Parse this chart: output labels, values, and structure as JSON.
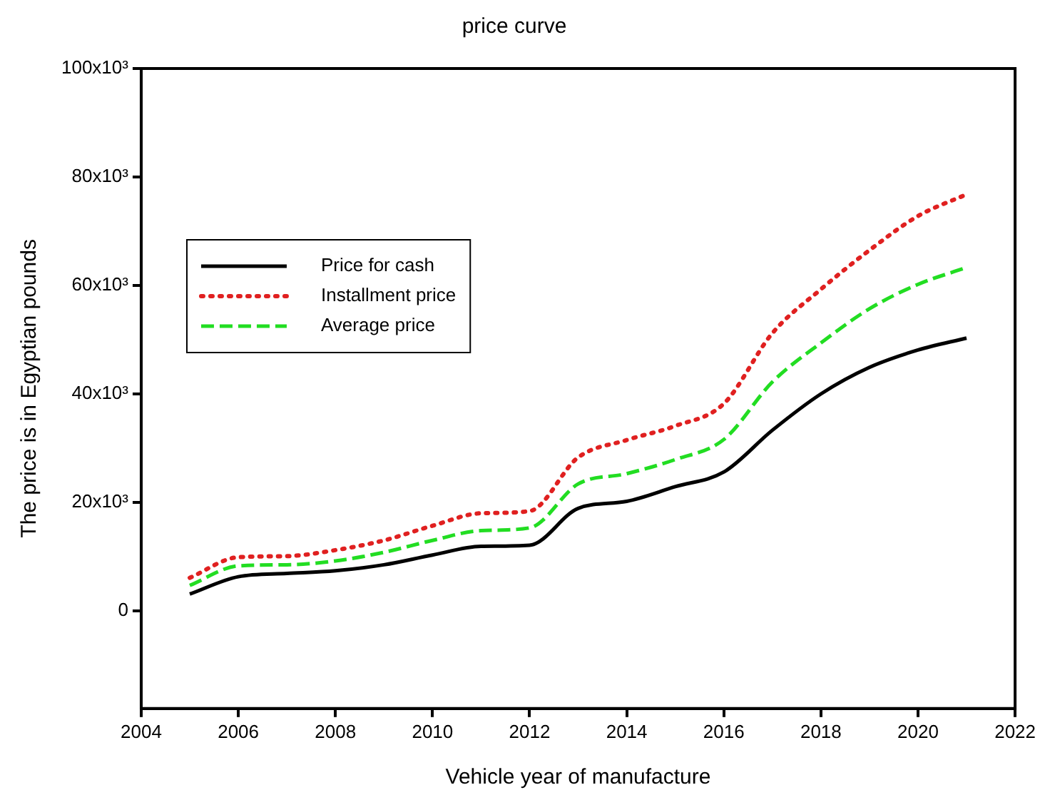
{
  "chart_data": {
    "type": "line",
    "title": "price curve",
    "xlabel": "Vehicle year of manufacture",
    "ylabel": "The price is in Egyptian pounds",
    "x": [
      2005,
      2006,
      2007,
      2008,
      2009,
      2010,
      2011,
      2012,
      2013,
      2014,
      2015,
      2016,
      2017,
      2018,
      2019,
      2020,
      2021
    ],
    "series": [
      {
        "name": "Price for cash",
        "color": "#000000",
        "line_style": "solid",
        "values": [
          3100,
          6300,
          6900,
          7400,
          8500,
          10300,
          11900,
          12100,
          18900,
          20200,
          22900,
          25600,
          33300,
          40000,
          44900,
          48100,
          50300
        ]
      },
      {
        "name": "Installment price",
        "color": "#e02020",
        "line_style": "dotted",
        "values": [
          6100,
          9900,
          10100,
          11200,
          13000,
          15700,
          18000,
          18400,
          28300,
          31500,
          34100,
          38200,
          51200,
          59300,
          66500,
          72800,
          76800
        ]
      },
      {
        "name": "Average price",
        "color": "#22dd22",
        "line_style": "dashed",
        "values": [
          4700,
          8300,
          8500,
          9200,
          10800,
          13000,
          14800,
          15300,
          23400,
          25300,
          27900,
          31600,
          42200,
          49400,
          55700,
          60200,
          63300
        ]
      }
    ],
    "xlim": [
      2004,
      2022
    ],
    "xticks": [
      2004,
      2006,
      2008,
      2010,
      2012,
      2014,
      2016,
      2018,
      2020,
      2022
    ],
    "ylim": [
      -18000,
      100000
    ],
    "yticks": [
      0,
      {
        "value": 20000,
        "label": "20x10³"
      },
      {
        "value": 40000,
        "label": "40x10³"
      },
      {
        "value": 60000,
        "label": "60x10³"
      },
      {
        "value": 80000,
        "label": "80x10³"
      },
      {
        "value": 100000,
        "label": "100x10³"
      }
    ],
    "grid": false,
    "legend": "top left",
    "marker": "none"
  }
}
